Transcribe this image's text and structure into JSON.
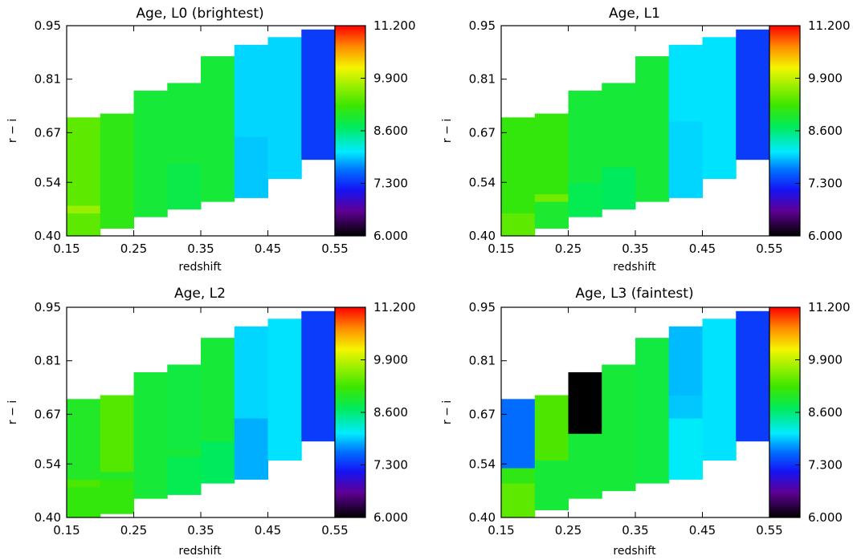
{
  "chart_data": [
    {
      "type": "heatmap",
      "title": "Age, L0 (brightest)",
      "xlabel": "redshift",
      "ylabel": "r − i",
      "xlim": [
        0.15,
        0.55
      ],
      "ylim": [
        0.4,
        0.95
      ],
      "xticks": [
        "0.15",
        "0.25",
        "0.35",
        "0.45",
        "0.55"
      ],
      "yticks": [
        "0.40",
        "0.54",
        "0.67",
        "0.81",
        "0.95"
      ],
      "colorbar": {
        "min": 6.0,
        "max": 11.2,
        "ticks": [
          "6.000",
          "7.300",
          "8.600",
          "9.900",
          "11.200"
        ]
      },
      "cells": [
        {
          "x0": 0.15,
          "x1": 0.2,
          "y0": 0.4,
          "y1": 0.46,
          "v": 9.4
        },
        {
          "x0": 0.15,
          "x1": 0.2,
          "y0": 0.46,
          "y1": 0.48,
          "v": 9.7
        },
        {
          "x0": 0.15,
          "x1": 0.2,
          "y0": 0.48,
          "y1": 0.71,
          "v": 9.4
        },
        {
          "x0": 0.2,
          "x1": 0.25,
          "y0": 0.42,
          "y1": 0.72,
          "v": 9.1
        },
        {
          "x0": 0.25,
          "x1": 0.3,
          "y0": 0.45,
          "y1": 0.78,
          "v": 8.9
        },
        {
          "x0": 0.3,
          "x1": 0.35,
          "y0": 0.47,
          "y1": 0.59,
          "v": 8.8
        },
        {
          "x0": 0.3,
          "x1": 0.35,
          "y0": 0.59,
          "y1": 0.8,
          "v": 8.9
        },
        {
          "x0": 0.35,
          "x1": 0.4,
          "y0": 0.49,
          "y1": 0.87,
          "v": 8.9
        },
        {
          "x0": 0.4,
          "x1": 0.45,
          "y0": 0.5,
          "y1": 0.66,
          "v": 7.95
        },
        {
          "x0": 0.4,
          "x1": 0.45,
          "y0": 0.66,
          "y1": 0.9,
          "v": 8.0
        },
        {
          "x0": 0.45,
          "x1": 0.5,
          "y0": 0.55,
          "y1": 0.92,
          "v": 8.0
        },
        {
          "x0": 0.5,
          "x1": 0.55,
          "y0": 0.6,
          "y1": 0.94,
          "v": 7.35
        }
      ]
    },
    {
      "type": "heatmap",
      "title": "Age, L1",
      "xlabel": "redshift",
      "ylabel": "r − i",
      "xlim": [
        0.15,
        0.55
      ],
      "ylim": [
        0.4,
        0.95
      ],
      "xticks": [
        "0.15",
        "0.25",
        "0.35",
        "0.45",
        "0.55"
      ],
      "yticks": [
        "0.40",
        "0.54",
        "0.67",
        "0.81",
        "0.95"
      ],
      "colorbar": {
        "min": 6.0,
        "max": 11.2,
        "ticks": [
          "6.000",
          "7.300",
          "8.600",
          "9.900",
          "11.200"
        ]
      },
      "cells": [
        {
          "x0": 0.15,
          "x1": 0.2,
          "y0": 0.4,
          "y1": 0.46,
          "v": 9.4
        },
        {
          "x0": 0.15,
          "x1": 0.2,
          "y0": 0.46,
          "y1": 0.71,
          "v": 9.15
        },
        {
          "x0": 0.2,
          "x1": 0.25,
          "y0": 0.42,
          "y1": 0.49,
          "v": 8.95
        },
        {
          "x0": 0.2,
          "x1": 0.25,
          "y0": 0.49,
          "y1": 0.51,
          "v": 9.5
        },
        {
          "x0": 0.2,
          "x1": 0.25,
          "y0": 0.51,
          "y1": 0.72,
          "v": 9.15
        },
        {
          "x0": 0.25,
          "x1": 0.3,
          "y0": 0.45,
          "y1": 0.54,
          "v": 8.75
        },
        {
          "x0": 0.25,
          "x1": 0.3,
          "y0": 0.54,
          "y1": 0.78,
          "v": 8.9
        },
        {
          "x0": 0.3,
          "x1": 0.35,
          "y0": 0.47,
          "y1": 0.58,
          "v": 8.7
        },
        {
          "x0": 0.3,
          "x1": 0.35,
          "y0": 0.58,
          "y1": 0.8,
          "v": 8.9
        },
        {
          "x0": 0.35,
          "x1": 0.4,
          "y0": 0.49,
          "y1": 0.87,
          "v": 8.9
        },
        {
          "x0": 0.4,
          "x1": 0.45,
          "y0": 0.5,
          "y1": 0.7,
          "v": 8.0
        },
        {
          "x0": 0.4,
          "x1": 0.45,
          "y0": 0.7,
          "y1": 0.9,
          "v": 8.05
        },
        {
          "x0": 0.45,
          "x1": 0.5,
          "y0": 0.55,
          "y1": 0.92,
          "v": 8.05
        },
        {
          "x0": 0.5,
          "x1": 0.55,
          "y0": 0.6,
          "y1": 0.94,
          "v": 7.35
        }
      ]
    },
    {
      "type": "heatmap",
      "title": "Age, L2",
      "xlabel": "redshift",
      "ylabel": "r − i",
      "xlim": [
        0.15,
        0.55
      ],
      "ylim": [
        0.4,
        0.95
      ],
      "xticks": [
        "0.15",
        "0.25",
        "0.35",
        "0.45",
        "0.55"
      ],
      "yticks": [
        "0.40",
        "0.54",
        "0.67",
        "0.81",
        "0.95"
      ],
      "colorbar": {
        "min": 6.0,
        "max": 11.2,
        "ticks": [
          "6.000",
          "7.300",
          "8.600",
          "9.900",
          "11.200"
        ]
      },
      "cells": [
        {
          "x0": 0.15,
          "x1": 0.2,
          "y0": 0.4,
          "y1": 0.48,
          "v": 9.15
        },
        {
          "x0": 0.15,
          "x1": 0.2,
          "y0": 0.48,
          "y1": 0.5,
          "v": 9.3
        },
        {
          "x0": 0.15,
          "x1": 0.2,
          "y0": 0.5,
          "y1": 0.71,
          "v": 9.0
        },
        {
          "x0": 0.2,
          "x1": 0.25,
          "y0": 0.41,
          "y1": 0.5,
          "v": 9.15
        },
        {
          "x0": 0.2,
          "x1": 0.25,
          "y0": 0.5,
          "y1": 0.52,
          "v": 9.0
        },
        {
          "x0": 0.2,
          "x1": 0.25,
          "y0": 0.52,
          "y1": 0.72,
          "v": 9.35
        },
        {
          "x0": 0.25,
          "x1": 0.3,
          "y0": 0.45,
          "y1": 0.78,
          "v": 8.9
        },
        {
          "x0": 0.3,
          "x1": 0.35,
          "y0": 0.46,
          "y1": 0.56,
          "v": 8.75
        },
        {
          "x0": 0.3,
          "x1": 0.35,
          "y0": 0.56,
          "y1": 0.58,
          "v": 8.9
        },
        {
          "x0": 0.3,
          "x1": 0.35,
          "y0": 0.58,
          "y1": 0.8,
          "v": 8.85
        },
        {
          "x0": 0.35,
          "x1": 0.4,
          "y0": 0.49,
          "y1": 0.6,
          "v": 8.7
        },
        {
          "x0": 0.35,
          "x1": 0.4,
          "y0": 0.6,
          "y1": 0.87,
          "v": 8.9
        },
        {
          "x0": 0.4,
          "x1": 0.45,
          "y0": 0.5,
          "y1": 0.66,
          "v": 7.85
        },
        {
          "x0": 0.4,
          "x1": 0.45,
          "y0": 0.66,
          "y1": 0.9,
          "v": 8.0
        },
        {
          "x0": 0.45,
          "x1": 0.5,
          "y0": 0.55,
          "y1": 0.92,
          "v": 8.05
        },
        {
          "x0": 0.5,
          "x1": 0.55,
          "y0": 0.6,
          "y1": 0.94,
          "v": 7.35
        }
      ]
    },
    {
      "type": "heatmap",
      "title": "Age, L3 (faintest)",
      "xlabel": "redshift",
      "ylabel": "r − i",
      "xlim": [
        0.15,
        0.55
      ],
      "ylim": [
        0.4,
        0.95
      ],
      "xticks": [
        "0.15",
        "0.25",
        "0.35",
        "0.45",
        "0.55"
      ],
      "yticks": [
        "0.40",
        "0.54",
        "0.67",
        "0.81",
        "0.95"
      ],
      "colorbar": {
        "min": 6.0,
        "max": 11.2,
        "ticks": [
          "6.000",
          "7.300",
          "8.600",
          "9.900",
          "11.200"
        ]
      },
      "cells": [
        {
          "x0": 0.15,
          "x1": 0.2,
          "y0": 0.4,
          "y1": 0.49,
          "v": 9.4
        },
        {
          "x0": 0.15,
          "x1": 0.2,
          "y0": 0.49,
          "y1": 0.53,
          "v": 9.1
        },
        {
          "x0": 0.15,
          "x1": 0.2,
          "y0": 0.53,
          "y1": 0.71,
          "v": 7.6
        },
        {
          "x0": 0.2,
          "x1": 0.25,
          "y0": 0.42,
          "y1": 0.55,
          "v": 8.9
        },
        {
          "x0": 0.2,
          "x1": 0.25,
          "y0": 0.55,
          "y1": 0.72,
          "v": 9.3
        },
        {
          "x0": 0.25,
          "x1": 0.3,
          "y0": 0.45,
          "y1": 0.62,
          "v": 8.9
        },
        {
          "x0": 0.25,
          "x1": 0.3,
          "y0": 0.62,
          "y1": 0.78,
          "v": 6.0
        },
        {
          "x0": 0.3,
          "x1": 0.35,
          "y0": 0.47,
          "y1": 0.8,
          "v": 8.9
        },
        {
          "x0": 0.35,
          "x1": 0.4,
          "y0": 0.49,
          "y1": 0.87,
          "v": 8.85
        },
        {
          "x0": 0.4,
          "x1": 0.45,
          "y0": 0.5,
          "y1": 0.66,
          "v": 8.1
        },
        {
          "x0": 0.4,
          "x1": 0.45,
          "y0": 0.66,
          "y1": 0.72,
          "v": 7.95
        },
        {
          "x0": 0.4,
          "x1": 0.45,
          "y0": 0.72,
          "y1": 0.9,
          "v": 7.9
        },
        {
          "x0": 0.45,
          "x1": 0.5,
          "y0": 0.55,
          "y1": 0.92,
          "v": 8.05
        },
        {
          "x0": 0.5,
          "x1": 0.55,
          "y0": 0.6,
          "y1": 0.94,
          "v": 7.35
        }
      ]
    }
  ]
}
